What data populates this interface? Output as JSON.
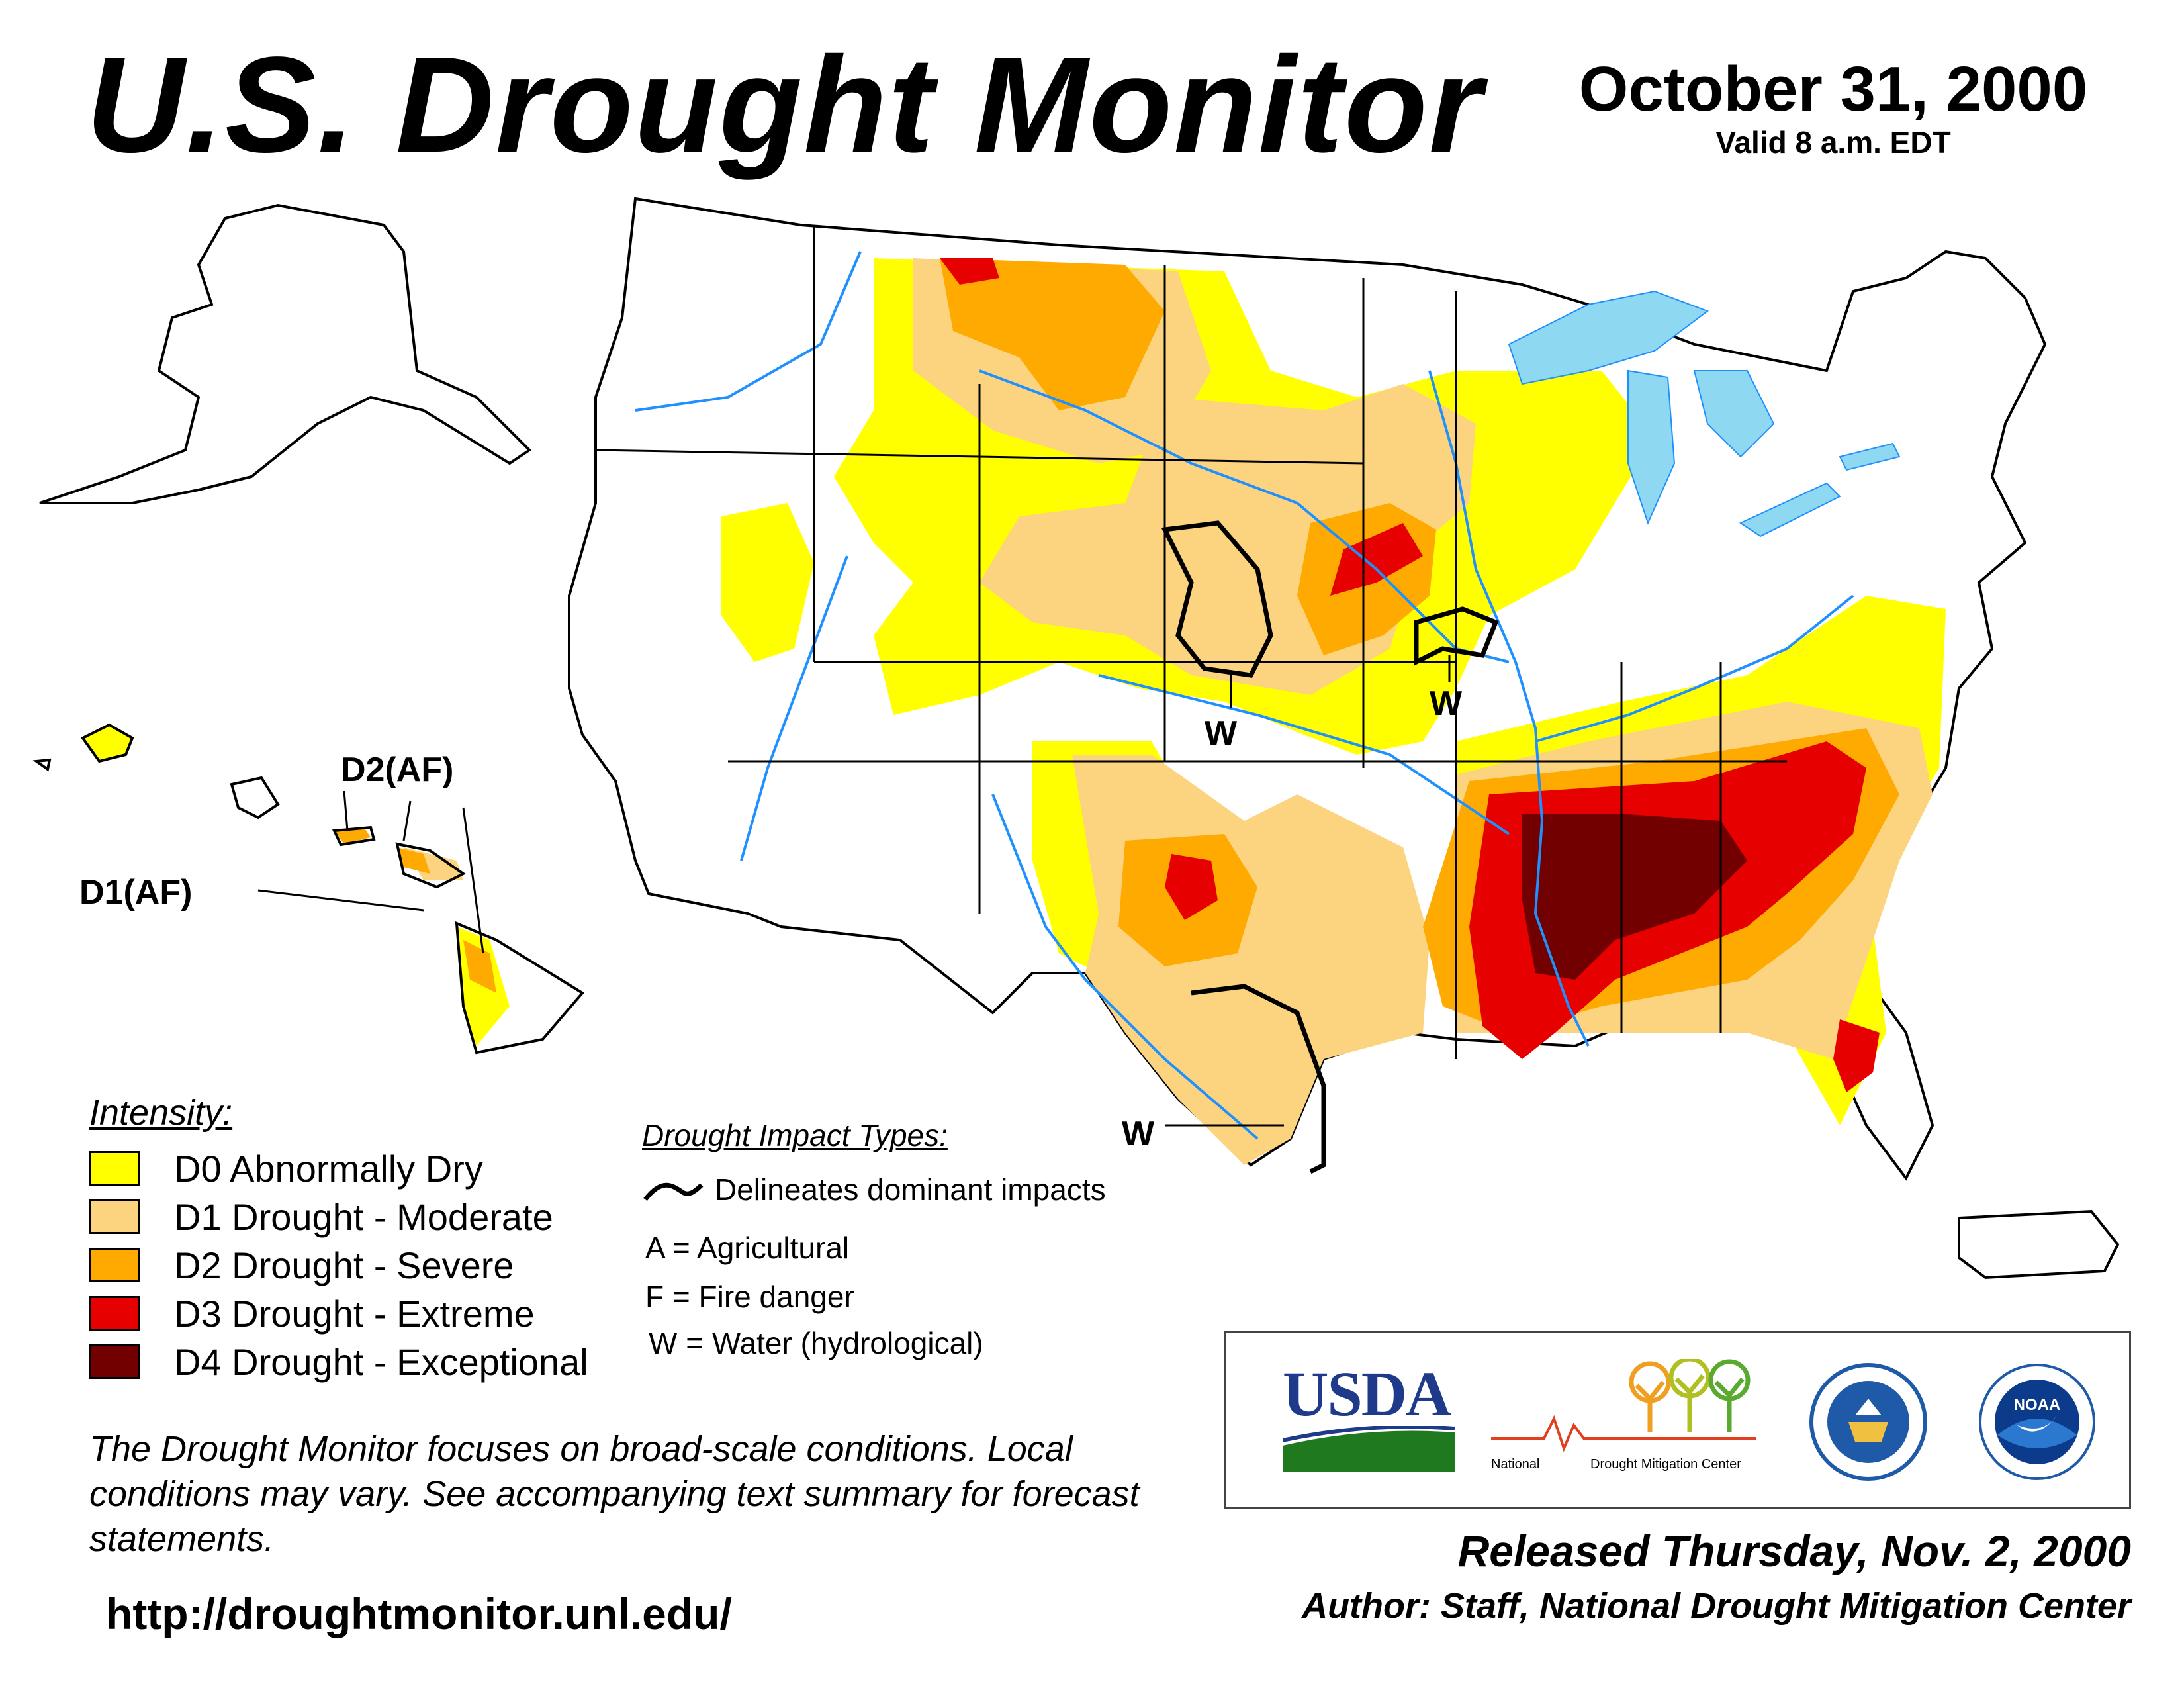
{
  "header": {
    "title": "U.S. Drought Monitor",
    "date": "October 31, 2000",
    "valid": "Valid 8 a.m. EDT"
  },
  "map": {
    "labels": {
      "w_colorado": "W",
      "w_iowa": "W",
      "w_texas": "W",
      "d2af": "D2(AF)",
      "d1af": "D1(AF)"
    }
  },
  "legend": {
    "title": "Intensity:",
    "items": [
      {
        "label": "D0 Abnormally Dry",
        "color": "#ffff00"
      },
      {
        "label": "D1 Drought - Moderate",
        "color": "#fcd37f"
      },
      {
        "label": "D2 Drought - Severe",
        "color": "#ffaa00"
      },
      {
        "label": "D3 Drought - Extreme",
        "color": "#e60000"
      },
      {
        "label": "D4 Drought - Exceptional",
        "color": "#730000"
      }
    ]
  },
  "impacts": {
    "title": "Drought Impact Types:",
    "line_label": "Delineates dominant impacts",
    "items": [
      "A = Agricultural",
      "F = Fire danger",
      "W = Water (hydrological)"
    ]
  },
  "note": "The Drought Monitor focuses on broad-scale conditions. Local conditions may vary. See accompanying text summary for forecast statements.",
  "url": "http://droughtmonitor.unl.edu/",
  "logos": {
    "usda": "USDA",
    "ndmc_left": "National",
    "ndmc_right": "Drought Mitigation Center",
    "noaa": "NOAA"
  },
  "footer": {
    "released": "Released Thursday, Nov. 2, 2000",
    "author": "Author: Staff, National Drought Mitigation Center"
  }
}
